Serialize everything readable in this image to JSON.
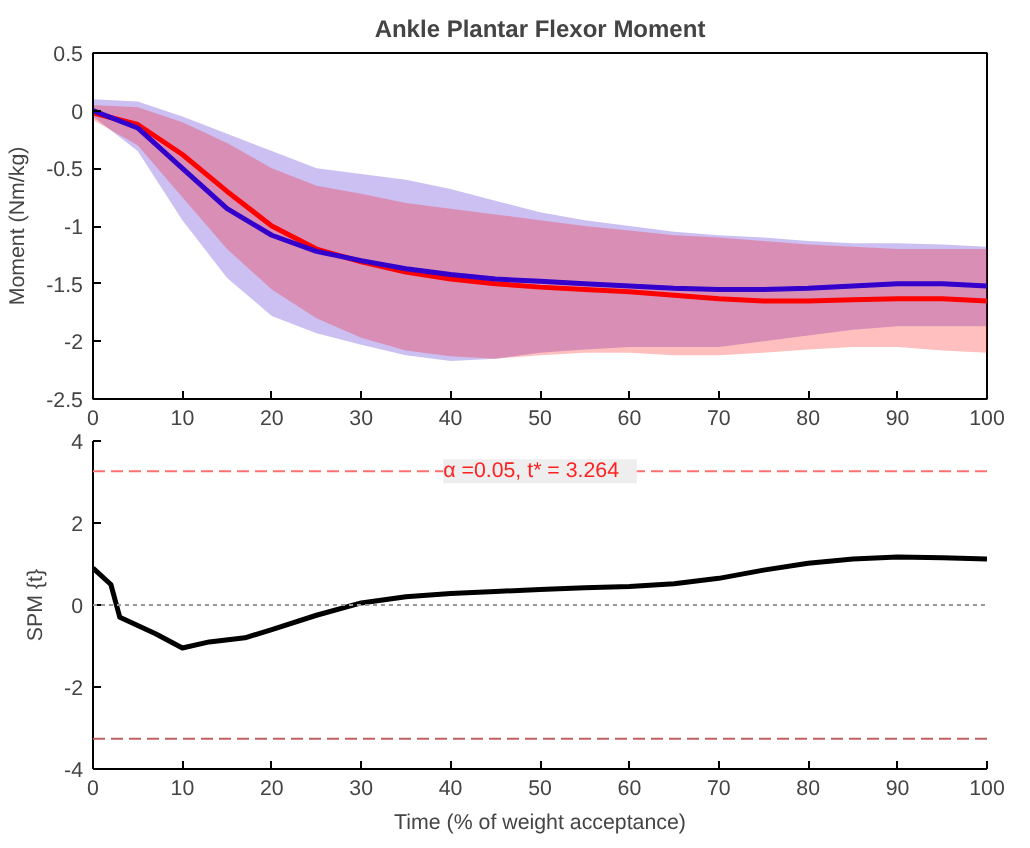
{
  "chart_data": [
    {
      "type": "line",
      "title": "Ankle Plantar Flexor Moment",
      "ylabel": "Moment (Nm/kg)",
      "xlim": [
        0,
        100
      ],
      "xticks": [
        0,
        10,
        20,
        30,
        40,
        50,
        60,
        70,
        80,
        90,
        100
      ],
      "ylim": [
        -2.5,
        0.5
      ],
      "yticks": [
        -2.5,
        -2,
        -1.5,
        -1,
        -0.5,
        0,
        0.5
      ],
      "grid": false,
      "line_style": "solid",
      "marker": "none",
      "x": [
        0,
        5,
        10,
        15,
        20,
        25,
        30,
        35,
        40,
        45,
        50,
        55,
        60,
        65,
        70,
        75,
        80,
        85,
        90,
        95,
        100
      ],
      "series": [
        {
          "color": "#3300cc",
          "values": [
            0.0,
            -0.15,
            -0.5,
            -0.85,
            -1.08,
            -1.22,
            -1.3,
            -1.37,
            -1.42,
            -1.46,
            -1.48,
            -1.5,
            -1.52,
            -1.54,
            -1.55,
            -1.55,
            -1.54,
            -1.52,
            -1.5,
            -1.5,
            -1.52
          ],
          "upper": [
            0.1,
            0.08,
            -0.05,
            -0.2,
            -0.35,
            -0.5,
            -0.55,
            -0.6,
            -0.68,
            -0.78,
            -0.88,
            -0.95,
            -1.0,
            -1.05,
            -1.08,
            -1.1,
            -1.13,
            -1.15,
            -1.15,
            -1.16,
            -1.18
          ],
          "lower": [
            -0.05,
            -0.35,
            -0.95,
            -1.45,
            -1.78,
            -1.93,
            -2.03,
            -2.12,
            -2.17,
            -2.15,
            -2.1,
            -2.07,
            -2.05,
            -2.05,
            -2.05,
            -2.0,
            -1.95,
            -1.9,
            -1.87,
            -1.87,
            -1.87
          ]
        },
        {
          "color": "#ff0000",
          "values": [
            -0.02,
            -0.12,
            -0.38,
            -0.7,
            -1.0,
            -1.2,
            -1.31,
            -1.4,
            -1.46,
            -1.5,
            -1.53,
            -1.55,
            -1.57,
            -1.6,
            -1.63,
            -1.65,
            -1.65,
            -1.64,
            -1.63,
            -1.63,
            -1.65
          ],
          "upper": [
            0.05,
            0.03,
            -0.1,
            -0.28,
            -0.5,
            -0.65,
            -0.72,
            -0.8,
            -0.85,
            -0.9,
            -0.95,
            -1.0,
            -1.04,
            -1.08,
            -1.1,
            -1.13,
            -1.16,
            -1.18,
            -1.2,
            -1.2,
            -1.2
          ],
          "lower": [
            -0.08,
            -0.3,
            -0.75,
            -1.2,
            -1.55,
            -1.8,
            -1.97,
            -2.08,
            -2.13,
            -2.15,
            -2.12,
            -2.1,
            -2.1,
            -2.12,
            -2.12,
            -2.1,
            -2.07,
            -2.05,
            -2.05,
            -2.08,
            -2.1
          ]
        }
      ]
    },
    {
      "type": "line",
      "xlabel": "Time (% of weight acceptance)",
      "ylabel": "SPM {t}",
      "xlim": [
        0,
        100
      ],
      "xticks": [
        0,
        10,
        20,
        30,
        40,
        50,
        60,
        70,
        80,
        90,
        100
      ],
      "ylim": [
        -4,
        4
      ],
      "yticks": [
        -4,
        -2,
        0,
        2,
        4
      ],
      "grid": false,
      "line_style": "solid",
      "marker": "none",
      "x": [
        0,
        2,
        3,
        5,
        7,
        10,
        13,
        17,
        20,
        25,
        30,
        35,
        40,
        45,
        50,
        55,
        60,
        65,
        70,
        75,
        80,
        85,
        90,
        95,
        100
      ],
      "series": [
        {
          "color": "#000000",
          "values": [
            0.9,
            0.5,
            -0.3,
            -0.5,
            -0.7,
            -1.05,
            -0.9,
            -0.8,
            -0.6,
            -0.25,
            0.05,
            0.2,
            0.28,
            0.33,
            0.38,
            0.42,
            0.45,
            0.52,
            0.65,
            0.85,
            1.02,
            1.12,
            1.17,
            1.15,
            1.12
          ]
        }
      ],
      "ref_lines": [
        {
          "axis": "y",
          "value": 3.264,
          "color": "#ff7070",
          "line_style": "dashed"
        },
        {
          "axis": "y",
          "value": -3.264,
          "color": "#c06060",
          "line_style": "dashed"
        },
        {
          "axis": "y",
          "value": 0,
          "color": "#999999",
          "line_style": "dotted"
        }
      ],
      "annotations": [
        {
          "text": "α =0.05,    t* = 3.264",
          "x": 50,
          "y": 3.264
        }
      ]
    }
  ]
}
